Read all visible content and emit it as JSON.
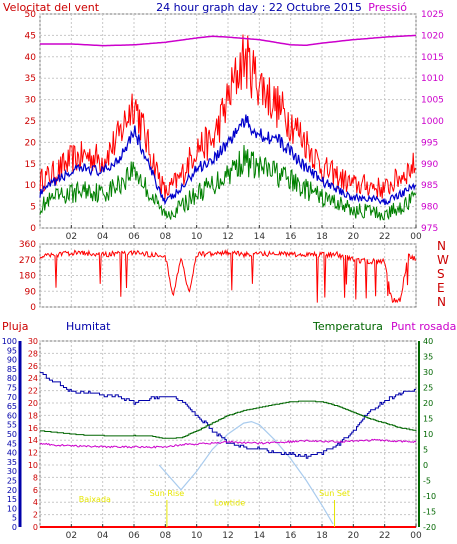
{
  "chart_data": [
    {
      "type": "line",
      "title": "24 hour graph day : 22 Octubre 2015",
      "ylabel": "Velocitat del vent",
      "ylabel_right": "Pressió",
      "ylim": [
        0,
        50
      ],
      "ylim_right": [
        975,
        1025
      ],
      "y_ticks": [
        "0",
        "5",
        "10",
        "15",
        "20",
        "25",
        "30",
        "35",
        "40",
        "45",
        "50"
      ],
      "y_ticks_right": [
        "975",
        "980",
        "985",
        "990",
        "995",
        "1000",
        "1005",
        "1010",
        "1015",
        "1020",
        "1025"
      ],
      "x_ticks": [
        "02",
        "04",
        "06",
        "08",
        "10",
        "12",
        "14",
        "16",
        "18",
        "20",
        "22",
        "00"
      ],
      "grid": true,
      "colors": {
        "gust": "#ff0000",
        "avg": "#0000cc",
        "wind": "#008000",
        "pressure": "#cc00cc",
        "axis_left": "#cc0000",
        "axis_right": "#cc00cc"
      },
      "series": [
        {
          "key": "gust",
          "x": [
            0,
            1,
            2,
            3,
            4,
            5,
            6,
            7,
            8,
            9,
            10,
            11,
            12,
            13,
            14,
            15,
            16,
            17,
            18,
            19,
            20,
            21,
            22,
            23,
            24
          ],
          "values": [
            11,
            13,
            16,
            17,
            16,
            21,
            30,
            18,
            8,
            12,
            19,
            20,
            30,
            40,
            34,
            29,
            25,
            20,
            14,
            12,
            10,
            10,
            9,
            12,
            15
          ]
        },
        {
          "key": "avg",
          "x": [
            0,
            1,
            2,
            3,
            4,
            5,
            6,
            7,
            8,
            9,
            10,
            11,
            12,
            13,
            14,
            15,
            16,
            17,
            18,
            19,
            20,
            21,
            22,
            23,
            24
          ],
          "values": [
            8,
            11,
            13,
            14,
            13,
            16,
            23,
            14,
            6,
            9,
            14,
            16,
            20,
            25,
            22,
            21,
            18,
            14,
            11,
            9,
            7,
            7,
            6,
            8,
            10
          ]
        },
        {
          "key": "wind",
          "x": [
            0,
            1,
            2,
            3,
            4,
            5,
            6,
            7,
            8,
            9,
            10,
            11,
            12,
            13,
            14,
            15,
            16,
            17,
            18,
            19,
            20,
            21,
            22,
            23,
            24
          ],
          "values": [
            5,
            7,
            8,
            9,
            8,
            10,
            14,
            8,
            3,
            5,
            8,
            10,
            13,
            16,
            14,
            13,
            11,
            9,
            7,
            6,
            4,
            4,
            3,
            5,
            7
          ]
        },
        {
          "key": "pressure",
          "x": [
            0,
            2,
            4,
            6,
            8,
            10,
            11,
            12,
            14,
            16,
            17,
            18,
            20,
            22,
            24
          ],
          "values": [
            1018,
            1018,
            1017.6,
            1017.8,
            1018.4,
            1019.4,
            1019.8,
            1019.6,
            1019,
            1017.8,
            1017.7,
            1018.2,
            1019,
            1019.6,
            1020
          ]
        }
      ]
    },
    {
      "type": "line",
      "ylim": [
        0,
        360
      ],
      "y_ticks": [
        "0",
        "90",
        "180",
        "270",
        "360"
      ],
      "compass_labels": [
        "N",
        "W",
        "S",
        "E",
        "N"
      ],
      "x_ticks": [
        "02",
        "04",
        "06",
        "08",
        "10",
        "12",
        "14",
        "16",
        "18",
        "20",
        "22",
        "00"
      ],
      "colors": {
        "direction": "#ff0000"
      },
      "series": [
        {
          "key": "direction",
          "x": [
            0,
            1,
            2,
            3,
            4,
            5,
            6,
            7,
            8,
            8.5,
            9,
            9.5,
            10,
            11,
            12,
            13,
            14,
            15,
            16,
            17,
            18,
            19,
            20,
            21,
            22,
            22.5,
            23,
            23.5,
            24
          ],
          "values": [
            290,
            300,
            310,
            305,
            300,
            305,
            310,
            300,
            290,
            60,
            280,
            80,
            300,
            305,
            310,
            300,
            300,
            305,
            300,
            295,
            300,
            300,
            270,
            260,
            260,
            30,
            40,
            300,
            270
          ]
        }
      ]
    },
    {
      "type": "line",
      "labels": [
        "Pluja",
        "Humitat",
        "Temperatura",
        "Punt rosada"
      ],
      "ylim_rain": [
        0,
        30
      ],
      "ylim_humidity": [
        0,
        100
      ],
      "ylim_temperature": [
        -20,
        40
      ],
      "y_ticks_rain": [
        "0",
        "2",
        "4",
        "6",
        "8",
        "10",
        "12",
        "14",
        "16",
        "18",
        "20",
        "22",
        "24",
        "26",
        "28",
        "30"
      ],
      "y_ticks_humidity": [
        "0",
        "5",
        "10",
        "15",
        "20",
        "25",
        "30",
        "35",
        "40",
        "45",
        "50",
        "55",
        "60",
        "65",
        "70",
        "75",
        "80",
        "85",
        "90",
        "95",
        "100"
      ],
      "y_ticks_temperature": [
        "-20",
        "-15",
        "-10",
        "-5",
        "0",
        "5",
        "10",
        "15",
        "20",
        "25",
        "30",
        "35",
        "40"
      ],
      "x_ticks": [
        "02",
        "04",
        "06",
        "08",
        "10",
        "12",
        "14",
        "16",
        "18",
        "20",
        "22",
        "00"
      ],
      "annotations": [
        "Baixada",
        "Sun Rise",
        "Lowtide",
        "Sun Set"
      ],
      "colors": {
        "rain": "#ff0000",
        "humidity": "#0000aa",
        "temperature": "#006600",
        "dewpoint": "#cc00cc",
        "solar": "#aaccee",
        "annotation": "#e6e600"
      },
      "series": [
        {
          "key": "humidity",
          "x": [
            0,
            0.5,
            1,
            2,
            3,
            4,
            5,
            6,
            7,
            8,
            8.5,
            9,
            10,
            11,
            12,
            13,
            14,
            15,
            16,
            17,
            18,
            19,
            20,
            21,
            22,
            23,
            24
          ],
          "values": [
            83,
            80,
            78,
            73,
            72,
            71,
            70,
            67,
            69,
            70,
            71,
            68,
            60,
            52,
            45,
            43,
            42,
            40,
            39,
            38,
            40,
            44,
            52,
            62,
            68,
            72,
            74
          ]
        },
        {
          "key": "temperature",
          "x": [
            0,
            1,
            2,
            3,
            4,
            5,
            6,
            7,
            8,
            9,
            10,
            11,
            12,
            13,
            14,
            15,
            16,
            17,
            18,
            19,
            20,
            21,
            22,
            23,
            24
          ],
          "values": [
            11,
            10.5,
            10,
            9.6,
            9.5,
            9.4,
            9.5,
            9.4,
            8.5,
            8.8,
            11,
            13.5,
            16,
            17.5,
            18.5,
            19.5,
            20.4,
            20.6,
            20.4,
            19,
            17,
            15,
            13.5,
            12,
            11
          ]
        },
        {
          "key": "dewpoint",
          "x": [
            0,
            1,
            2,
            3,
            4,
            5,
            6,
            7,
            8,
            9,
            10,
            11,
            12,
            13,
            14,
            15,
            16,
            17,
            18,
            19,
            20,
            21,
            22,
            23,
            24
          ],
          "values": [
            7,
            6.4,
            6.2,
            6,
            5.9,
            5.8,
            5.8,
            5.8,
            5.8,
            6.5,
            6.8,
            7,
            7.5,
            7.2,
            7,
            7.3,
            7.5,
            7.8,
            7.6,
            7.5,
            7.8,
            8,
            8,
            7.6,
            7.5
          ]
        },
        {
          "key": "solar",
          "x": [
            7.6,
            9,
            10,
            11,
            12,
            13,
            13.5,
            14,
            15,
            16,
            17,
            18,
            18.7
          ],
          "values": [
            0,
            -8,
            -2,
            5,
            10,
            13.5,
            14,
            13,
            8,
            2,
            -5,
            -13,
            -19
          ]
        },
        {
          "key": "rain",
          "x": [
            0,
            24
          ],
          "values": [
            0,
            0
          ]
        }
      ],
      "annotation_positions": [
        {
          "label": "Baixada",
          "x": 3.5,
          "y": -12
        },
        {
          "label": "Sun Rise",
          "x": 8.1,
          "y": -10
        },
        {
          "label": "Lowtide",
          "x": 12.1,
          "y": -13
        },
        {
          "label": "Sun Set",
          "x": 18.8,
          "y": -10
        }
      ]
    }
  ]
}
